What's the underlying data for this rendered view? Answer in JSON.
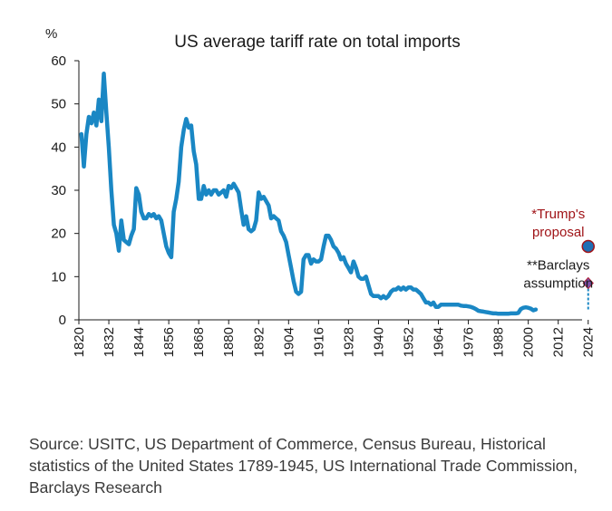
{
  "chart_data": {
    "type": "line",
    "title": "US average tariff rate on total imports",
    "ylabel": "%",
    "xlabel": "",
    "xlim": [
      1820,
      2027
    ],
    "ylim": [
      0,
      60
    ],
    "grid": false,
    "x_ticks": [
      1820,
      1832,
      1844,
      1856,
      1868,
      1880,
      1892,
      1904,
      1916,
      1928,
      1940,
      1952,
      1964,
      1976,
      1988,
      2000,
      2012,
      2024
    ],
    "y_ticks": [
      0,
      10,
      20,
      30,
      40,
      50,
      60
    ],
    "series": [
      {
        "name": "US average tariff rate on total imports",
        "color": "#1a87c4",
        "points": [
          [
            1821,
            43
          ],
          [
            1822,
            35.5
          ],
          [
            1823,
            43
          ],
          [
            1824,
            47
          ],
          [
            1825,
            45.5
          ],
          [
            1826,
            48
          ],
          [
            1827,
            45
          ],
          [
            1828,
            51
          ],
          [
            1829,
            46
          ],
          [
            1830,
            57
          ],
          [
            1831,
            48
          ],
          [
            1832,
            40
          ],
          [
            1833,
            30
          ],
          [
            1834,
            22
          ],
          [
            1835,
            20
          ],
          [
            1836,
            16
          ],
          [
            1837,
            23
          ],
          [
            1838,
            18.5
          ],
          [
            1839,
            18
          ],
          [
            1840,
            17.5
          ],
          [
            1841,
            19.5
          ],
          [
            1842,
            21
          ],
          [
            1843,
            30.5
          ],
          [
            1844,
            29
          ],
          [
            1845,
            25
          ],
          [
            1846,
            23.5
          ],
          [
            1847,
            23.5
          ],
          [
            1848,
            24.5
          ],
          [
            1849,
            24
          ],
          [
            1850,
            24.5
          ],
          [
            1851,
            23.5
          ],
          [
            1852,
            24
          ],
          [
            1853,
            23
          ],
          [
            1854,
            20
          ],
          [
            1855,
            17
          ],
          [
            1856,
            15.5
          ],
          [
            1857,
            14.5
          ],
          [
            1858,
            25
          ],
          [
            1859,
            28
          ],
          [
            1860,
            32
          ],
          [
            1861,
            40
          ],
          [
            1862,
            44
          ],
          [
            1863,
            46.5
          ],
          [
            1864,
            44.5
          ],
          [
            1865,
            45
          ],
          [
            1866,
            39
          ],
          [
            1867,
            36
          ],
          [
            1868,
            28
          ],
          [
            1869,
            28
          ],
          [
            1870,
            31
          ],
          [
            1871,
            29
          ],
          [
            1872,
            30
          ],
          [
            1873,
            29
          ],
          [
            1874,
            30
          ],
          [
            1875,
            30
          ],
          [
            1876,
            29
          ],
          [
            1877,
            29.5
          ],
          [
            1878,
            30
          ],
          [
            1879,
            28.5
          ],
          [
            1880,
            31
          ],
          [
            1881,
            30.5
          ],
          [
            1882,
            31.5
          ],
          [
            1883,
            30.5
          ],
          [
            1884,
            29.5
          ],
          [
            1885,
            25.5
          ],
          [
            1886,
            22
          ],
          [
            1887,
            24
          ],
          [
            1888,
            21
          ],
          [
            1889,
            20.5
          ],
          [
            1890,
            21
          ],
          [
            1891,
            23
          ],
          [
            1892,
            29.5
          ],
          [
            1893,
            28
          ],
          [
            1894,
            28.5
          ],
          [
            1895,
            27.5
          ],
          [
            1896,
            26.5
          ],
          [
            1897,
            23.5
          ],
          [
            1898,
            24
          ],
          [
            1899,
            23.5
          ],
          [
            1900,
            23
          ],
          [
            1901,
            20.5
          ],
          [
            1902,
            19.5
          ],
          [
            1903,
            18
          ],
          [
            1904,
            15
          ],
          [
            1905,
            12
          ],
          [
            1906,
            9
          ],
          [
            1907,
            6.5
          ],
          [
            1908,
            6
          ],
          [
            1909,
            6.5
          ],
          [
            1910,
            14
          ],
          [
            1911,
            15
          ],
          [
            1912,
            15
          ],
          [
            1913,
            13
          ],
          [
            1914,
            14
          ],
          [
            1915,
            13.5
          ],
          [
            1916,
            13.5
          ],
          [
            1917,
            14
          ],
          [
            1918,
            17
          ],
          [
            1919,
            19.5
          ],
          [
            1920,
            19.5
          ],
          [
            1921,
            18.5
          ],
          [
            1922,
            17
          ],
          [
            1923,
            16.5
          ],
          [
            1924,
            15.5
          ],
          [
            1925,
            14
          ],
          [
            1926,
            14.5
          ],
          [
            1927,
            13
          ],
          [
            1928,
            12
          ],
          [
            1929,
            11
          ],
          [
            1930,
            13.5
          ],
          [
            1931,
            12
          ],
          [
            1932,
            10
          ],
          [
            1933,
            9.5
          ],
          [
            1934,
            9.5
          ],
          [
            1935,
            10
          ],
          [
            1936,
            8
          ],
          [
            1937,
            6
          ],
          [
            1938,
            5.5
          ],
          [
            1939,
            5.5
          ],
          [
            1940,
            5.5
          ],
          [
            1941,
            5
          ],
          [
            1942,
            5.5
          ],
          [
            1943,
            5
          ],
          [
            1944,
            5.5
          ],
          [
            1945,
            6.5
          ],
          [
            1946,
            7
          ],
          [
            1947,
            7
          ],
          [
            1948,
            7.5
          ],
          [
            1949,
            7
          ],
          [
            1950,
            7.5
          ],
          [
            1951,
            7
          ],
          [
            1952,
            7.5
          ],
          [
            1953,
            7.5
          ],
          [
            1954,
            7
          ],
          [
            1955,
            7
          ],
          [
            1956,
            6.5
          ],
          [
            1957,
            6
          ],
          [
            1958,
            5
          ],
          [
            1959,
            4
          ],
          [
            1960,
            4
          ],
          [
            1961,
            3.5
          ],
          [
            1962,
            4
          ],
          [
            1963,
            3
          ],
          [
            1964,
            3
          ],
          [
            1965,
            3.5
          ],
          [
            1966,
            3.5
          ],
          [
            1967,
            3.5
          ],
          [
            1968,
            3.5
          ],
          [
            1969,
            3.5
          ],
          [
            1970,
            3.5
          ],
          [
            1971,
            3.5
          ],
          [
            1972,
            3.5
          ],
          [
            1973,
            3.3
          ],
          [
            1974,
            3.2
          ],
          [
            1975,
            3.2
          ],
          [
            1976,
            3.1
          ],
          [
            1977,
            3
          ],
          [
            1978,
            2.8
          ],
          [
            1979,
            2.5
          ],
          [
            1980,
            2.1
          ],
          [
            1981,
            2
          ],
          [
            1982,
            1.9
          ],
          [
            1983,
            1.8
          ],
          [
            1984,
            1.7
          ],
          [
            1985,
            1.6
          ],
          [
            1986,
            1.5
          ],
          [
            1987,
            1.5
          ],
          [
            1988,
            1.4
          ],
          [
            1989,
            1.4
          ],
          [
            1990,
            1.4
          ],
          [
            1991,
            1.4
          ],
          [
            1992,
            1.4
          ],
          [
            1993,
            1.5
          ],
          [
            1994,
            1.5
          ],
          [
            1995,
            1.5
          ],
          [
            1996,
            1.6
          ],
          [
            1997,
            2.5
          ],
          [
            1998,
            2.8
          ],
          [
            1999,
            2.9
          ],
          [
            2000,
            2.8
          ],
          [
            2001,
            2.6
          ],
          [
            2002,
            2.2
          ],
          [
            2003,
            2.4
          ]
        ]
      }
    ],
    "annotations": [
      {
        "label_lines": [
          "*Trump's",
          "proposal"
        ],
        "x": 2024,
        "y": 17,
        "marker": "circle",
        "color": "#1f6fb5",
        "text_color": "#a01418"
      },
      {
        "label_lines": [
          "**Barclays",
          "assumption"
        ],
        "x": 2024,
        "y": 8.5,
        "marker": "diamond",
        "color": "#7b4fa8",
        "text_color": "#1a1a1a",
        "connector_from_y": 2.4
      }
    ]
  },
  "source_text": "Source: USITC, US Department of Commerce, Census Bureau, Historical statistics of the United States 1789-1945, US International Trade Commission, Barclays Research"
}
